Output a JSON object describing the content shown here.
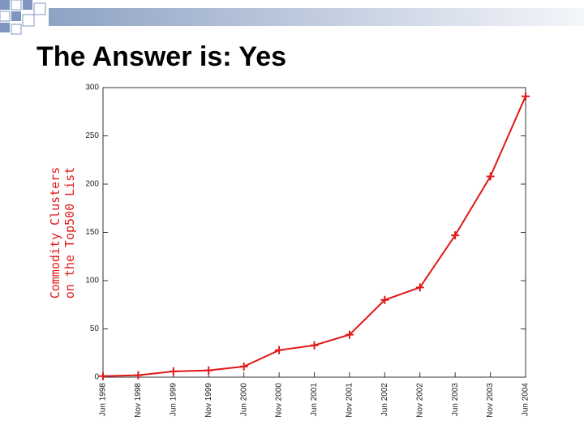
{
  "chart_data": {
    "type": "line",
    "title": "The Answer is: Yes",
    "ylabel": [
      "Commodity Clusters",
      "on the Top500 List"
    ],
    "categories": [
      "Jun 1998",
      "Nov 1998",
      "Jun 1999",
      "Nov 1999",
      "Jun 2000",
      "Nov 2000",
      "Jun 2001",
      "Nov 2001",
      "Jun 2002",
      "Nov 2002",
      "Jun 2003",
      "Nov 2003",
      "Jun 2004"
    ],
    "values": [
      1,
      2,
      6,
      7,
      11,
      28,
      33,
      44,
      80,
      93,
      147,
      208,
      291
    ],
    "color": "#e01818",
    "ylim": [
      0,
      300
    ],
    "yticks": [
      0,
      50,
      100,
      150,
      200,
      250,
      300
    ],
    "grid": false
  }
}
